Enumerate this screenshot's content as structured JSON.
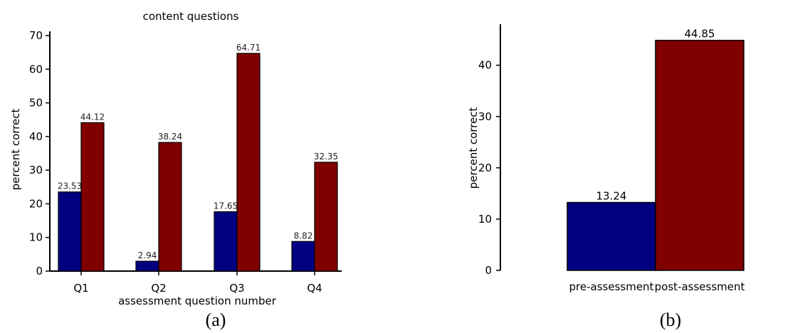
{
  "colors": {
    "pre": "#000080",
    "post": "#800000"
  },
  "chart_data": [
    {
      "type": "bar",
      "title": "content questions",
      "xlabel": "assessment question number",
      "ylabel": "percent correct",
      "caption": "(a)",
      "categories": [
        "Q1",
        "Q2",
        "Q3",
        "Q4"
      ],
      "series": [
        {
          "values": [
            23.53,
            2.94,
            17.65,
            8.82
          ],
          "color": "#000080"
        },
        {
          "values": [
            44.12,
            38.24,
            64.71,
            32.35
          ],
          "color": "#800000"
        }
      ],
      "value_labels": [
        [
          "23.53",
          "2.94",
          "17.65",
          "8.82"
        ],
        [
          "44.12",
          "38.24",
          "64.71",
          "32.35"
        ]
      ],
      "ylim": [
        0,
        70
      ],
      "yticks": [
        0,
        10,
        20,
        30,
        40,
        50,
        60,
        70
      ],
      "grid": false,
      "legend": "none"
    },
    {
      "type": "bar",
      "title": "",
      "xlabel": "",
      "ylabel": "percent correct",
      "caption": "(b)",
      "categories": [
        "pre-assessment",
        "post-assessment"
      ],
      "values": [
        13.24,
        44.85
      ],
      "value_labels": [
        "13.24",
        "44.85"
      ],
      "colors": [
        "#000080",
        "#800000"
      ],
      "ylim": [
        0,
        48
      ],
      "yticks": [
        0,
        10,
        20,
        30,
        40
      ],
      "grid": false,
      "legend": "none"
    }
  ]
}
